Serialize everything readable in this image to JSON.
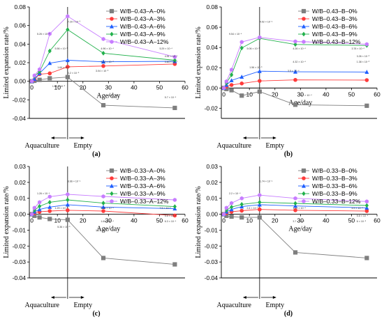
{
  "chart_data": [
    {
      "type": "line",
      "panel_label": "(a)",
      "xlabel": "Age/day",
      "ylabel": "Limited expansion rate/%",
      "xlim": [
        -1,
        60
      ],
      "ylim": [
        -0.04,
        0.08
      ],
      "xticks": [
        0,
        10,
        20,
        30,
        40,
        50,
        60
      ],
      "yticks": [
        -0.04,
        -0.02,
        0.0,
        0.02,
        0.04,
        0.06,
        0.08
      ],
      "ytick_labels": [
        "-0.04",
        "-0.02",
        "0.00",
        "0.02",
        "0.04",
        "0.06",
        "0.08"
      ],
      "regions": [
        "Aquaculture",
        "Empty"
      ],
      "divider_x": 14,
      "x": [
        0,
        1,
        3,
        7,
        14,
        28,
        56
      ],
      "series": [
        {
          "name": "W/B–0.43–A–0%",
          "color": "#7f7f7f",
          "marker": "square",
          "values": [
            0.0,
            0.0005,
            0.0015,
            0.0032,
            0.0045,
            -0.0258,
            -0.0287
          ]
        },
        {
          "name": "W/B–0.43–A–3%",
          "color": "#ff3b3b",
          "marker": "circle",
          "values": [
            0.0,
            0.0018,
            0.0076,
            0.0085,
            0.0156,
            0.0164,
            0.0186
          ]
        },
        {
          "name": "W/B–0.43–A–6%",
          "color": "#1f5fff",
          "marker": "triangle",
          "values": [
            0.0,
            0.0023,
            0.0085,
            0.0195,
            0.0226,
            0.021,
            0.0215
          ]
        },
        {
          "name": "W/B–0.43–A–9%",
          "color": "#22b14c",
          "marker": "diamond",
          "values": [
            0.0,
            0.0054,
            0.0103,
            0.0326,
            0.0556,
            0.0302,
            0.0226
          ]
        },
        {
          "name": "W/B–0.43–A–12%",
          "color": "#c77dff",
          "marker": "hexagon",
          "values": [
            0.0,
            0.0062,
            0.0128,
            0.051,
            0.07,
            0.0455,
            0.0262
          ]
        }
      ],
      "annotations": [
        "5.26 × 10⁻⁴",
        "5.56 × 10⁻³",
        "7.29 × 10⁻³",
        "4.96 × 10⁻⁴",
        "3.02 × 10⁻³",
        "5.29 × 10⁻⁴",
        "4.51 × 10⁻⁴",
        "3.84 × 10⁻³",
        "1.64 × 10⁻³",
        "3.04 × 10⁻³",
        "5.8 × 10⁻⁴",
        "5.7 × 10⁻⁴",
        "1.52 × 10⁻³",
        "3.2 × 10⁻⁵"
      ]
    },
    {
      "type": "line",
      "panel_label": "(b)",
      "xlabel": "Age/day",
      "ylabel": "Limited expansion rate/%",
      "xlim": [
        -1,
        60
      ],
      "ylim": [
        -0.03,
        0.08
      ],
      "xticks": [
        0,
        10,
        20,
        30,
        40,
        50,
        60
      ],
      "yticks": [
        -0.02,
        0.0,
        0.02,
        0.04,
        0.06,
        0.08
      ],
      "ytick_labels": [
        "-0.02",
        "0.00",
        "0.02",
        "0.04",
        "0.06",
        "0.08"
      ],
      "regions": [
        "Aquaculture",
        "Empty"
      ],
      "divider_x": 14,
      "x": [
        0,
        1,
        3,
        7,
        14,
        28,
        56
      ],
      "series": [
        {
          "name": "W/B–0.43–B–0%",
          "color": "#7f7f7f",
          "marker": "square",
          "values": [
            0.0,
            -0.001,
            -0.0022,
            -0.0075,
            -0.0035,
            -0.0165,
            -0.0175
          ]
        },
        {
          "name": "W/B–0.43–B–3%",
          "color": "#ff3b3b",
          "marker": "circle",
          "values": [
            0.0,
            0.0015,
            0.003,
            0.0045,
            0.007,
            0.008,
            0.0078
          ]
        },
        {
          "name": "W/B–0.43–B–6%",
          "color": "#1f5fff",
          "marker": "triangle",
          "values": [
            0.0,
            0.003,
            0.0075,
            0.011,
            0.0166,
            0.016,
            0.0158
          ]
        },
        {
          "name": "W/B–0.43–B–9%",
          "color": "#22b14c",
          "marker": "diamond",
          "values": [
            0.0,
            0.005,
            0.013,
            0.0395,
            0.049,
            0.043,
            0.042
          ]
        },
        {
          "name": "W/B–0.43–B–12%",
          "color": "#c77dff",
          "marker": "hexagon",
          "values": [
            0.0,
            0.0065,
            0.018,
            0.0454,
            0.05,
            0.046,
            0.0432
          ]
        }
      ],
      "annotations": [
        "9.54 × 10⁻⁴",
        "5.06 × 10⁻³",
        "4.52 × 10⁻⁴",
        "4.26 × 10⁻⁴",
        "4.32 × 10⁻⁴",
        "3.78 × 10⁻⁴",
        "3.26 × 10⁻³",
        "1.38 × 10⁻³",
        "1.56 × 10⁻³",
        "3.5 × 10⁻⁴",
        "3.7 × 10⁻⁴"
      ]
    },
    {
      "type": "line",
      "panel_label": "(c)",
      "xlabel": "Age/day",
      "ylabel": "Limited expansion rate/%",
      "xlim": [
        -1,
        60
      ],
      "ylim": [
        -0.04,
        0.03
      ],
      "xticks": [
        0,
        10,
        20,
        30,
        40,
        50,
        60
      ],
      "yticks": [
        -0.04,
        -0.03,
        -0.02,
        -0.01,
        0.0,
        0.01,
        0.02,
        0.03
      ],
      "ytick_labels": [
        "-0.04",
        "-0.03",
        "-0.02",
        "-0.01",
        "0.00",
        "0.01",
        "0.02",
        "0.03"
      ],
      "regions": [
        "Aquaculture",
        "Empty"
      ],
      "divider_x": 14,
      "x": [
        0,
        1,
        3,
        7,
        14,
        28,
        56
      ],
      "series": [
        {
          "name": "W/B–0.33–A–0%",
          "color": "#7f7f7f",
          "marker": "square",
          "values": [
            0.0,
            -0.001,
            -0.002,
            -0.003,
            -0.0035,
            -0.0275,
            -0.0315
          ]
        },
        {
          "name": "W/B–0.33–A–3%",
          "color": "#ff3b3b",
          "marker": "circle",
          "values": [
            0.0,
            0.0008,
            0.0015,
            0.002,
            0.0025,
            0.002,
            -0.0008
          ]
        },
        {
          "name": "W/B–0.33–A–6%",
          "color": "#1f5fff",
          "marker": "triangle",
          "values": [
            0.0,
            0.0015,
            0.003,
            0.0045,
            0.006,
            0.0045,
            0.0035
          ]
        },
        {
          "name": "W/B–0.33–A–9%",
          "color": "#22b14c",
          "marker": "diamond",
          "values": [
            0.0,
            0.0025,
            0.005,
            0.0075,
            0.009,
            0.007,
            0.0048
          ]
        },
        {
          "name": "W/B–0.33–A–12%",
          "color": "#c77dff",
          "marker": "hexagon",
          "values": [
            0.0,
            0.004,
            0.0075,
            0.011,
            0.0125,
            0.0112,
            0.009
          ]
        }
      ],
      "annotations": [
        "1.26 × 10⁻⁴",
        "1.29 × 10⁻⁴",
        "8.66 × 10⁻⁴",
        "5.28 × 10⁻⁴",
        "1.64 × 10⁻⁴",
        "7.3 × 10⁻⁵",
        "5.6 × 10⁻⁴",
        "6.3 × 10⁻⁴",
        "5.36 × 10⁻⁵",
        "1.4 × 10⁻⁵"
      ]
    },
    {
      "type": "line",
      "panel_label": "(d)",
      "xlabel": "Age/day",
      "ylabel": "Limited expansion rate/%",
      "xlim": [
        -1,
        60
      ],
      "ylim": [
        -0.04,
        0.03
      ],
      "xticks": [
        0,
        10,
        20,
        30,
        40,
        50,
        60
      ],
      "yticks": [
        -0.04,
        -0.03,
        -0.02,
        -0.01,
        0.0,
        0.01,
        0.02,
        0.03
      ],
      "ytick_labels": [
        "-0.04",
        "-0.03",
        "-0.02",
        "-0.01",
        "0.00",
        "0.01",
        "0.02",
        "0.03"
      ],
      "regions": [
        "Aquaculture",
        "Empty"
      ],
      "divider_x": 14,
      "x": [
        0,
        1,
        3,
        7,
        14,
        28,
        56
      ],
      "series": [
        {
          "name": "W/B–0.33–B–0%",
          "color": "#7f7f7f",
          "marker": "square",
          "values": [
            0.0,
            -0.001,
            -0.0015,
            -0.002,
            -0.002,
            -0.024,
            -0.0275
          ]
        },
        {
          "name": "W/B–0.33–B–3%",
          "color": "#ff3b3b",
          "marker": "circle",
          "values": [
            0.0,
            0.0008,
            0.0015,
            0.0022,
            0.003,
            0.0025,
            0.002
          ]
        },
        {
          "name": "W/B–0.33–B–6%",
          "color": "#1f5fff",
          "marker": "triangle",
          "values": [
            0.0,
            0.0015,
            0.003,
            0.0048,
            0.006,
            0.0052,
            0.004
          ]
        },
        {
          "name": "W/B–0.33–B–9%",
          "color": "#22b14c",
          "marker": "diamond",
          "values": [
            0.0,
            0.0025,
            0.0045,
            0.0062,
            0.0075,
            0.0068,
            0.0055
          ]
        },
        {
          "name": "W/B–0.33–B–12%",
          "color": "#c77dff",
          "marker": "hexagon",
          "values": [
            0.0,
            0.004,
            0.007,
            0.01,
            0.012,
            0.01,
            0.008
          ]
        }
      ],
      "annotations": [
        "2.2 × 10⁻⁴",
        "2.4 × 10⁻⁴",
        "1.74 × 10⁻⁴",
        "1.52 × 10⁻⁴",
        "3.7 × 10⁻⁴",
        "4.9 × 10⁻⁴",
        "5.6 × 10⁻⁴",
        "6 × 10⁻⁵"
      ]
    }
  ]
}
